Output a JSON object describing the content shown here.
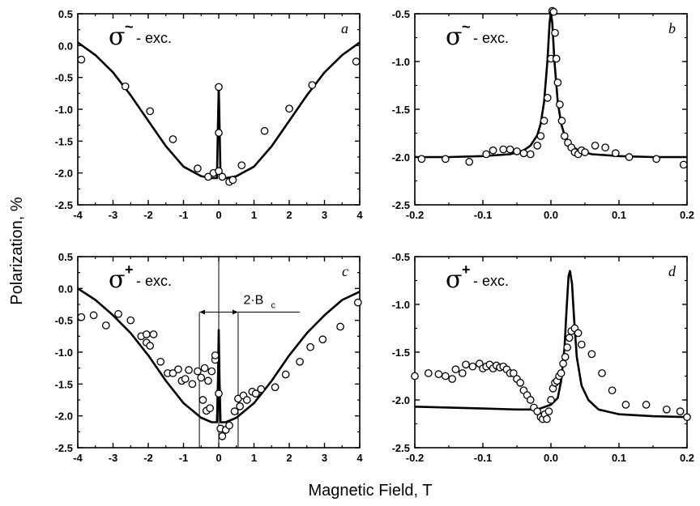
{
  "figure": {
    "ylabel": "Polarization, %",
    "xlabel": "Magnetic Field, T"
  },
  "chart_data": [
    {
      "id": "a",
      "type": "scatter",
      "panel_label": "a",
      "excitation_symbol": "σ",
      "excitation_superscript": "~",
      "excitation_text": "- exc.",
      "xlim": [
        -4,
        4
      ],
      "ylim": [
        -2.5,
        0.5
      ],
      "xticks": [
        -4,
        -3,
        -2,
        -1,
        0,
        1,
        2,
        3,
        4
      ],
      "xtick_labels": [
        "-4",
        "-3",
        "-2",
        "-1",
        "0",
        "1",
        "2",
        "3",
        "4"
      ],
      "yticks": [
        -2.5,
        -2.0,
        -1.5,
        -1.0,
        -0.5,
        0.0,
        0.5
      ],
      "ytick_labels": [
        "-2.5",
        "-2.0",
        "-1.5",
        "-1.0",
        "-0.5",
        "0.0",
        "0.5"
      ],
      "grid": false,
      "series": [
        {
          "kind": "points",
          "x": [
            -3.9,
            -2.65,
            -1.95,
            -1.3,
            -0.6,
            -0.3,
            -0.15,
            0.0,
            0.0,
            0.0,
            0.1,
            0.3,
            0.4,
            0.65,
            1.3,
            2.0,
            2.65,
            3.9
          ],
          "y": [
            -0.22,
            -0.64,
            -1.03,
            -1.47,
            -1.93,
            -2.06,
            -2.0,
            -0.65,
            -1.37,
            -1.97,
            -2.06,
            -2.14,
            -2.11,
            -1.88,
            -1.34,
            -0.99,
            -0.62,
            -0.25
          ]
        },
        {
          "kind": "curve",
          "x": [
            -4.0,
            -3.5,
            -3.0,
            -2.5,
            -2.0,
            -1.5,
            -1.0,
            -0.5,
            -0.2,
            -0.05,
            -0.02,
            0.0,
            0.02,
            0.05,
            0.2,
            0.5,
            1.0,
            1.5,
            2.0,
            2.5,
            3.0,
            3.5,
            4.0
          ],
          "y": [
            0.05,
            -0.15,
            -0.42,
            -0.78,
            -1.18,
            -1.58,
            -1.9,
            -2.05,
            -2.08,
            -2.08,
            -1.2,
            -0.65,
            -1.2,
            -2.08,
            -2.08,
            -2.05,
            -1.9,
            -1.58,
            -1.18,
            -0.78,
            -0.42,
            -0.15,
            0.05
          ]
        }
      ]
    },
    {
      "id": "b",
      "type": "scatter",
      "panel_label": "b",
      "excitation_symbol": "σ",
      "excitation_superscript": "~",
      "excitation_text": "- exc.",
      "xlim": [
        -0.2,
        0.2
      ],
      "ylim": [
        -2.5,
        -0.5
      ],
      "xticks": [
        -0.2,
        -0.1,
        0.0,
        0.1,
        0.2
      ],
      "xtick_labels": [
        "-0.2",
        "-0.1",
        "0.0",
        "0.1",
        "0.2"
      ],
      "yticks": [
        -2.5,
        -2.0,
        -1.5,
        -1.0,
        -0.5
      ],
      "ytick_labels": [
        "-2.5",
        "-2.0",
        "-1.5",
        "-1.0",
        "-0.5"
      ],
      "grid": false,
      "series": [
        {
          "kind": "points",
          "x": [
            -0.19,
            -0.155,
            -0.12,
            -0.095,
            -0.085,
            -0.07,
            -0.06,
            -0.05,
            -0.04,
            -0.03,
            -0.02,
            -0.015,
            -0.01,
            -0.005,
            0.0,
            0.002,
            0.004,
            0.006,
            0.008,
            0.01,
            0.013,
            0.016,
            0.02,
            0.025,
            0.03,
            0.035,
            0.04,
            0.045,
            0.05,
            0.065,
            0.08,
            0.095,
            0.115,
            0.155,
            0.195
          ],
          "y": [
            -2.02,
            -2.02,
            -2.05,
            -1.97,
            -1.93,
            -1.92,
            -1.92,
            -1.94,
            -1.96,
            -1.97,
            -1.88,
            -1.78,
            -1.62,
            -1.38,
            -0.97,
            -0.47,
            -0.48,
            -0.7,
            -0.97,
            -1.22,
            -1.45,
            -1.62,
            -1.78,
            -1.85,
            -1.9,
            -1.95,
            -1.97,
            -1.93,
            -1.95,
            -1.88,
            -1.9,
            -1.96,
            -2.0,
            -2.02,
            -2.08
          ]
        },
        {
          "kind": "curve",
          "x": [
            -0.2,
            -0.15,
            -0.1,
            -0.06,
            -0.04,
            -0.03,
            -0.02,
            -0.015,
            -0.01,
            -0.005,
            -0.002,
            0.0,
            0.002,
            0.005,
            0.01,
            0.015,
            0.02,
            0.03,
            0.04,
            0.06,
            0.1,
            0.15,
            0.2
          ],
          "y": [
            -2.0,
            -2.0,
            -1.99,
            -1.97,
            -1.93,
            -1.88,
            -1.77,
            -1.65,
            -1.42,
            -0.98,
            -0.6,
            -0.48,
            -0.6,
            -0.98,
            -1.42,
            -1.65,
            -1.77,
            -1.88,
            -1.93,
            -1.97,
            -1.99,
            -2.0,
            -2.0
          ]
        }
      ]
    },
    {
      "id": "c",
      "type": "scatter",
      "panel_label": "c",
      "excitation_symbol": "σ",
      "excitation_superscript": "+",
      "excitation_text": "- exc.",
      "annotation_main": "2·B",
      "annotation_sub": "c",
      "marker_lines_x": [
        -0.55,
        0.55
      ],
      "xlim": [
        -4,
        4
      ],
      "ylim": [
        -2.5,
        0.5
      ],
      "xticks": [
        -4,
        -3,
        -2,
        -1,
        0,
        1,
        2,
        3,
        4
      ],
      "xtick_labels": [
        "-4",
        "-3",
        "-2",
        "-1",
        "0",
        "1",
        "2",
        "3",
        "4"
      ],
      "yticks": [
        -2.5,
        -2.0,
        -1.5,
        -1.0,
        -0.5,
        0.0,
        0.5
      ],
      "ytick_labels": [
        "-2.5",
        "-2.0",
        "-1.5",
        "-1.0",
        "-0.5",
        "0.0",
        "0.5"
      ],
      "grid": false,
      "series": [
        {
          "kind": "points",
          "x": [
            -3.9,
            -3.55,
            -3.2,
            -2.85,
            -2.5,
            -2.2,
            -2.05,
            -2.05,
            -1.95,
            -1.85,
            -1.65,
            -1.45,
            -1.3,
            -1.15,
            -1.05,
            -0.95,
            -0.85,
            -0.75,
            -0.6,
            -0.5,
            -0.4,
            -0.3,
            -0.2,
            -0.1,
            -0.45,
            -0.35,
            -0.25,
            -0.1,
            0.0,
            0.05,
            0.1,
            0.2,
            0.3,
            0.45,
            0.55,
            0.6,
            0.7,
            0.8,
            0.95,
            1.05,
            1.2,
            1.6,
            1.9,
            2.3,
            2.6,
            2.95,
            3.45,
            3.95
          ],
          "y": [
            -0.45,
            -0.42,
            -0.58,
            -0.4,
            -0.5,
            -0.75,
            -0.85,
            -0.72,
            -0.9,
            -0.72,
            -1.15,
            -1.33,
            -1.33,
            -1.27,
            -1.45,
            -1.42,
            -1.28,
            -1.5,
            -1.3,
            -1.4,
            -1.25,
            -1.45,
            -1.3,
            -1.12,
            -1.75,
            -1.92,
            -1.88,
            -1.05,
            -1.65,
            -2.2,
            -2.32,
            -2.22,
            -2.15,
            -1.93,
            -1.73,
            -1.85,
            -1.68,
            -1.75,
            -1.62,
            -1.65,
            -1.58,
            -1.55,
            -1.35,
            -1.15,
            -0.92,
            -0.8,
            -0.6,
            -0.22
          ]
        },
        {
          "kind": "curve",
          "x": [
            -4.0,
            -3.5,
            -3.0,
            -2.5,
            -2.0,
            -1.5,
            -1.0,
            -0.5,
            -0.2,
            -0.05,
            -0.02,
            0.0,
            0.02,
            0.05,
            0.2,
            0.5,
            1.0,
            1.5,
            2.0,
            2.5,
            3.0,
            3.5,
            4.0
          ],
          "y": [
            0.0,
            -0.18,
            -0.42,
            -0.7,
            -1.05,
            -1.45,
            -1.8,
            -2.03,
            -2.1,
            -2.1,
            -1.4,
            -0.65,
            -1.4,
            -2.1,
            -2.1,
            -2.03,
            -1.8,
            -1.45,
            -1.05,
            -0.7,
            -0.42,
            -0.18,
            -0.05
          ]
        }
      ]
    },
    {
      "id": "d",
      "type": "scatter",
      "panel_label": "d",
      "excitation_symbol": "σ",
      "excitation_superscript": "+",
      "excitation_text": "- exc.",
      "xlim": [
        -0.2,
        0.2
      ],
      "ylim": [
        -2.5,
        -0.5
      ],
      "xticks": [
        -0.2,
        -0.1,
        0.0,
        0.1,
        0.2
      ],
      "xtick_labels": [
        "-0.2",
        "-0.1",
        "0.0",
        "0.1",
        "0.2"
      ],
      "yticks": [
        -2.5,
        -2.0,
        -1.5,
        -1.0,
        -0.5
      ],
      "ytick_labels": [
        "-2.5",
        "-2.0",
        "-1.5",
        "-1.0",
        "-0.5"
      ],
      "grid": false,
      "series": [
        {
          "kind": "points",
          "x": [
            -0.2,
            -0.18,
            -0.165,
            -0.155,
            -0.145,
            -0.14,
            -0.13,
            -0.125,
            -0.115,
            -0.105,
            -0.1,
            -0.095,
            -0.09,
            -0.085,
            -0.08,
            -0.075,
            -0.07,
            -0.065,
            -0.06,
            -0.055,
            -0.05,
            -0.045,
            -0.04,
            -0.035,
            -0.03,
            -0.025,
            -0.02,
            -0.015,
            -0.012,
            -0.009,
            -0.006,
            -0.003,
            0.0,
            0.003,
            0.006,
            0.009,
            0.012,
            0.015,
            0.018,
            0.021,
            0.024,
            0.027,
            0.03,
            0.035,
            0.04,
            0.045,
            0.06,
            0.075,
            0.09,
            0.11,
            0.14,
            0.17,
            0.19,
            0.2
          ],
          "y": [
            -1.75,
            -1.72,
            -1.73,
            -1.75,
            -1.78,
            -1.68,
            -1.72,
            -1.63,
            -1.65,
            -1.62,
            -1.67,
            -1.65,
            -1.63,
            -1.67,
            -1.64,
            -1.66,
            -1.65,
            -1.68,
            -1.72,
            -1.72,
            -1.78,
            -1.82,
            -1.9,
            -1.95,
            -2.0,
            -2.08,
            -2.12,
            -2.18,
            -2.2,
            -2.15,
            -2.2,
            -2.12,
            -2.0,
            -1.88,
            -1.82,
            -1.8,
            -1.75,
            -1.72,
            -1.62,
            -1.55,
            -1.45,
            -1.35,
            -1.28,
            -1.25,
            -1.3,
            -1.42,
            -1.52,
            -1.72,
            -1.9,
            -2.05,
            -2.05,
            -2.1,
            -2.12,
            -2.18
          ]
        },
        {
          "kind": "curve",
          "x": [
            -0.2,
            -0.15,
            -0.1,
            -0.05,
            -0.02,
            0.0,
            0.01,
            0.015,
            0.02,
            0.023,
            0.026,
            0.028,
            0.031,
            0.034,
            0.038,
            0.045,
            0.055,
            0.07,
            0.1,
            0.15,
            0.2
          ],
          "y": [
            -2.07,
            -2.08,
            -2.09,
            -2.1,
            -2.1,
            -2.05,
            -1.98,
            -1.8,
            -1.45,
            -1.05,
            -0.7,
            -0.65,
            -0.78,
            -1.15,
            -1.55,
            -1.85,
            -2.0,
            -2.1,
            -2.15,
            -2.17,
            -2.18
          ]
        }
      ]
    }
  ]
}
